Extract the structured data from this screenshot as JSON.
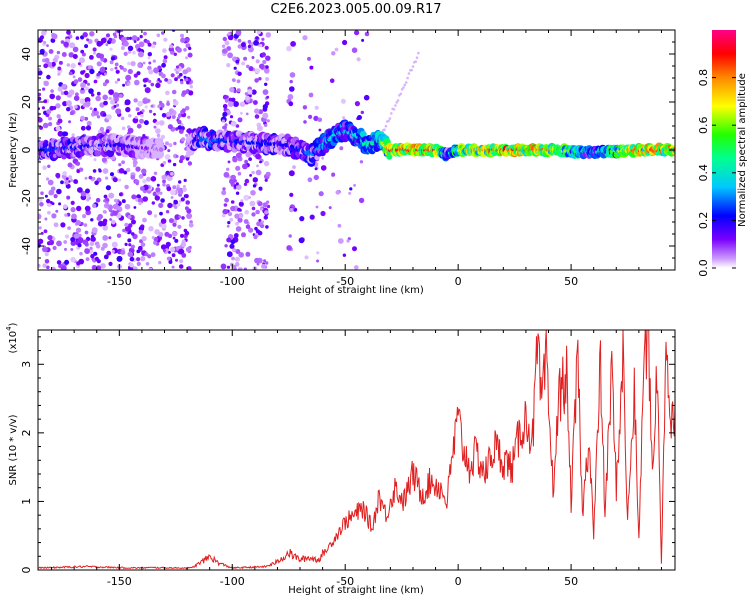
{
  "title": "C2E6.2023.005.00.09.R17",
  "chart_data": [
    {
      "type": "heatmap",
      "xlabel": "Height of straight line (km)",
      "ylabel": "Frequency (Hz)",
      "xlim": [
        -186,
        96
      ],
      "ylim": [
        -50,
        50
      ],
      "xticks": [
        -150,
        -100,
        -50,
        0,
        50
      ],
      "xtick_labels": [
        "-150",
        "-100",
        "-50",
        "0",
        "50"
      ],
      "yticks": [
        -40,
        -20,
        0,
        20,
        40
      ],
      "ytick_labels": [
        "-40",
        "-20",
        "0",
        "20",
        "40"
      ],
      "colorbar": {
        "label": "Normalized spectral amplitude",
        "range": [
          0,
          1
        ],
        "ticks": [
          0.0,
          0.2,
          0.4,
          0.6,
          0.8
        ],
        "tick_labels": [
          "0.0",
          "0.2",
          "0.4",
          "0.6",
          "0.8"
        ],
        "colors": [
          "#ffffff",
          "#7700ff",
          "#0000ff",
          "#00ddff",
          "#00ff44",
          "#ffff00",
          "#ff8800",
          "#ff0000",
          "#ff0080"
        ]
      },
      "ridge": {
        "description_points_x": [
          -180,
          -160,
          -150,
          -130,
          -120,
          -115,
          -110,
          -105,
          -75,
          -70,
          -65,
          -60,
          -55,
          -50,
          -45,
          -40,
          -35,
          -30,
          -20,
          -10,
          -5,
          0,
          20,
          40,
          60,
          80,
          95
        ],
        "frequency_hz": [
          0,
          2,
          2,
          0,
          0,
          6,
          4,
          4,
          2,
          0,
          -2,
          2,
          6,
          8,
          6,
          2,
          4,
          0,
          0,
          0,
          -2,
          0,
          0,
          0,
          -1,
          0,
          0
        ],
        "amplitude": [
          0.25,
          0.2,
          0.2,
          0.05,
          0.05,
          0.25,
          0.3,
          0.25,
          0.2,
          0.25,
          0.3,
          0.35,
          0.4,
          0.35,
          0.4,
          0.45,
          0.5,
          0.9,
          0.95,
          0.9,
          0.3,
          0.7,
          0.9,
          0.85,
          0.35,
          0.9,
          0.85
        ]
      }
    },
    {
      "type": "line",
      "xlabel": "Height of straight line (km)",
      "ylabel": "SNR (10 * v/v)",
      "scale_label": "(x10",
      "scale_exp": "4",
      "xlim": [
        -186,
        96
      ],
      "ylim": [
        0,
        35000
      ],
      "xticks": [
        -150,
        -100,
        -50,
        0,
        50
      ],
      "xtick_labels": [
        "-150",
        "-100",
        "-50",
        "0",
        "50"
      ],
      "yticks": [
        0,
        10000,
        20000,
        30000
      ],
      "ytick_labels": [
        "0",
        "1",
        "2",
        "3"
      ],
      "line_color": "#e02020",
      "series": [
        {
          "x": [
            -186,
            -175,
            -165,
            -155,
            -145,
            -135,
            -125,
            -118,
            -112,
            -110,
            -106,
            -100,
            -92,
            -85,
            -80,
            -75,
            -70,
            -66,
            -62,
            -58,
            -54,
            -50,
            -46,
            -42,
            -38,
            -35,
            -32,
            -28,
            -24,
            -20,
            -16,
            -12,
            -8,
            -5,
            -2,
            0,
            2,
            5,
            8,
            12,
            16,
            20,
            24,
            28,
            30,
            33,
            35,
            37,
            39,
            42,
            45,
            48,
            50,
            53,
            55,
            58,
            60,
            63,
            65,
            68,
            70,
            73,
            75,
            78,
            80,
            82,
            84,
            86,
            88,
            90,
            92,
            94,
            96
          ],
          "values": [
            300,
            400,
            500,
            400,
            300,
            350,
            300,
            300,
            1500,
            2000,
            1000,
            300,
            400,
            500,
            1200,
            2500,
            1500,
            1800,
            1500,
            3000,
            5000,
            7000,
            8000,
            9000,
            6000,
            11000,
            8000,
            12000,
            10000,
            14000,
            11000,
            13000,
            12000,
            10000,
            18000,
            22000,
            18000,
            15000,
            17000,
            14000,
            18000,
            16000,
            15000,
            21000,
            22000,
            19000,
            32000,
            24000,
            30000,
            12000,
            26000,
            28000,
            10000,
            31000,
            8000,
            20000,
            5000,
            30000,
            8000,
            29000,
            12000,
            31000,
            7000,
            26000,
            4000,
            28000,
            36000,
            14000,
            30000,
            1000,
            35000,
            20000,
            24000
          ]
        }
      ]
    }
  ]
}
